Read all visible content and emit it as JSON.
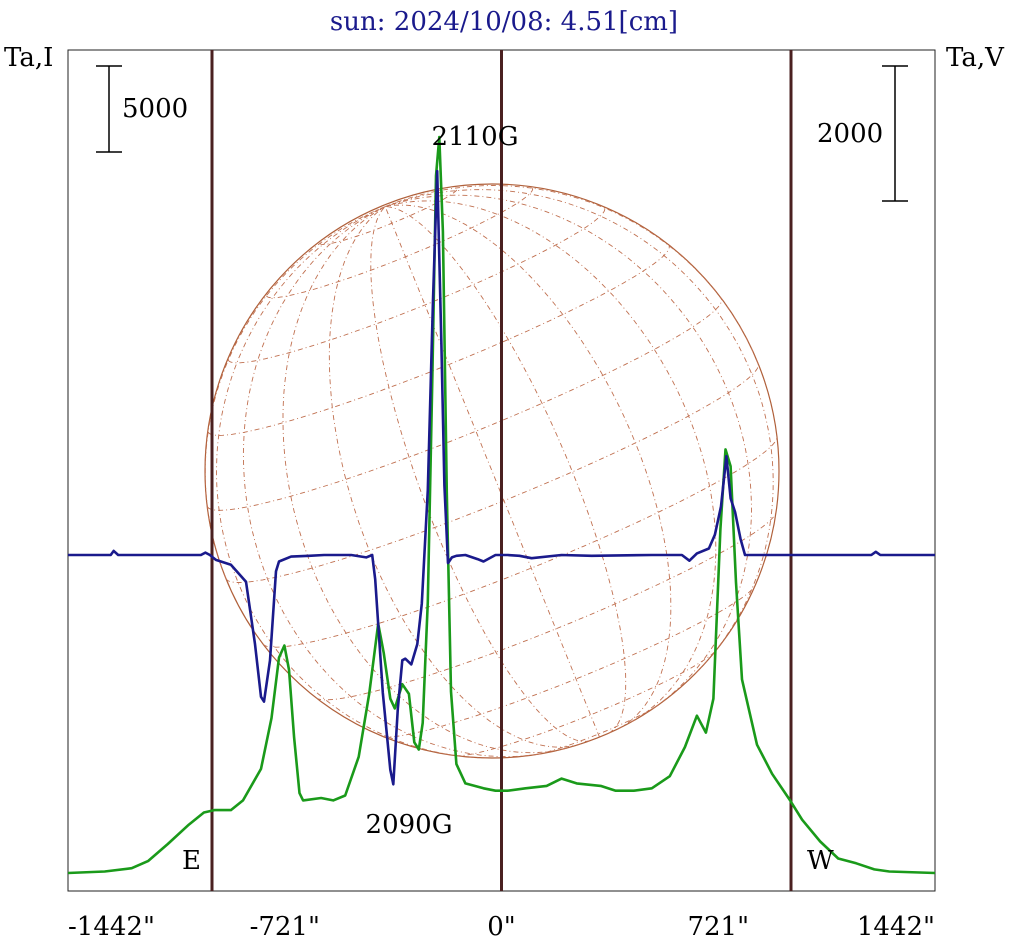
{
  "chart_data": {
    "type": "line",
    "title": "sun: 2024/10/08: 4.51[cm]",
    "left_axis_label": "Ta,I",
    "right_axis_label": "Ta,V",
    "x_ticks": [
      {
        "value": -1442,
        "label": "-1442\""
      },
      {
        "value": -721,
        "label": "-721\""
      },
      {
        "value": 0,
        "label": "0\""
      },
      {
        "value": 721,
        "label": "721\""
      },
      {
        "value": 1442,
        "label": "1442\""
      }
    ],
    "xlim": [
      -1442,
      1442
    ],
    "vertical_lines": [
      -963,
      0,
      963
    ],
    "limb_labels": {
      "east": "E",
      "west": "W"
    },
    "scale_bars": [
      {
        "axis": "I",
        "value": 5000,
        "label": "5000"
      },
      {
        "axis": "V",
        "value": 2000,
        "label": "2000"
      }
    ],
    "annotations": [
      {
        "text": "2110G",
        "x": -100
      },
      {
        "text": "2090G",
        "x": -310
      }
    ],
    "ylim_I": [
      0,
      34000
    ],
    "ylim_V": [
      -4000,
      5800
    ],
    "series": [
      {
        "stokes": "I",
        "color": "#1a9a1a",
        "points": [
          [
            -1442,
            0
          ],
          [
            -1320,
            60
          ],
          [
            -1230,
            200
          ],
          [
            -1175,
            500
          ],
          [
            -1110,
            1200
          ],
          [
            -1040,
            2000
          ],
          [
            -990,
            2500
          ],
          [
            -955,
            2600
          ],
          [
            -900,
            2600
          ],
          [
            -860,
            3000
          ],
          [
            -800,
            4300
          ],
          [
            -765,
            6400
          ],
          [
            -740,
            8900
          ],
          [
            -722,
            9400
          ],
          [
            -707,
            8400
          ],
          [
            -690,
            5600
          ],
          [
            -672,
            3300
          ],
          [
            -660,
            3000
          ],
          [
            -600,
            3100
          ],
          [
            -560,
            3000
          ],
          [
            -520,
            3200
          ],
          [
            -475,
            4800
          ],
          [
            -440,
            7400
          ],
          [
            -410,
            10300
          ],
          [
            -392,
            9100
          ],
          [
            -370,
            7200
          ],
          [
            -355,
            6800
          ],
          [
            -330,
            7800
          ],
          [
            -308,
            7400
          ],
          [
            -290,
            5400
          ],
          [
            -275,
            5100
          ],
          [
            -262,
            6200
          ],
          [
            -245,
            11200
          ],
          [
            -230,
            20600
          ],
          [
            -218,
            28800
          ],
          [
            -207,
            30400
          ],
          [
            -195,
            26500
          ],
          [
            -182,
            15700
          ],
          [
            -168,
            7500
          ],
          [
            -150,
            4500
          ],
          [
            -120,
            3700
          ],
          [
            -60,
            3500
          ],
          [
            -20,
            3400
          ],
          [
            20,
            3400
          ],
          [
            80,
            3500
          ],
          [
            150,
            3600
          ],
          [
            200,
            3900
          ],
          [
            250,
            3700
          ],
          [
            330,
            3600
          ],
          [
            380,
            3400
          ],
          [
            440,
            3400
          ],
          [
            500,
            3500
          ],
          [
            560,
            4000
          ],
          [
            610,
            5200
          ],
          [
            650,
            6500
          ],
          [
            680,
            5800
          ],
          [
            705,
            7200
          ],
          [
            728,
            14200
          ],
          [
            745,
            17500
          ],
          [
            762,
            16800
          ],
          [
            780,
            12000
          ],
          [
            800,
            8000
          ],
          [
            850,
            5300
          ],
          [
            900,
            4100
          ],
          [
            960,
            3000
          ],
          [
            1000,
            2200
          ],
          [
            1060,
            1300
          ],
          [
            1120,
            600
          ],
          [
            1180,
            400
          ],
          [
            1240,
            150
          ],
          [
            1290,
            60
          ],
          [
            1442,
            0
          ]
        ]
      },
      {
        "stokes": "V",
        "color": "#1a1a8c",
        "points": [
          [
            -1442,
            0
          ],
          [
            -1300,
            0
          ],
          [
            -1290,
            50
          ],
          [
            -1275,
            0
          ],
          [
            -1100,
            0
          ],
          [
            -1000,
            0
          ],
          [
            -985,
            30
          ],
          [
            -970,
            0
          ],
          [
            -950,
            -60
          ],
          [
            -900,
            -120
          ],
          [
            -850,
            -330
          ],
          [
            -820,
            -1100
          ],
          [
            -800,
            -1750
          ],
          [
            -790,
            -1810
          ],
          [
            -770,
            -1300
          ],
          [
            -750,
            -200
          ],
          [
            -740,
            -80
          ],
          [
            -700,
            -20
          ],
          [
            -640,
            -10
          ],
          [
            -590,
            0
          ],
          [
            -500,
            0
          ],
          [
            -450,
            -30
          ],
          [
            -430,
            0
          ],
          [
            -420,
            -300
          ],
          [
            -395,
            -1700
          ],
          [
            -370,
            -2650
          ],
          [
            -360,
            -2830
          ],
          [
            -345,
            -1900
          ],
          [
            -330,
            -1300
          ],
          [
            -320,
            -1280
          ],
          [
            -300,
            -1350
          ],
          [
            -280,
            -1100
          ],
          [
            -265,
            -600
          ],
          [
            -245,
            800
          ],
          [
            -228,
            3150
          ],
          [
            -214,
            4740
          ],
          [
            -200,
            2600
          ],
          [
            -190,
            860
          ],
          [
            -178,
            -100
          ],
          [
            -165,
            -30
          ],
          [
            -150,
            -10
          ],
          [
            -120,
            0
          ],
          [
            -80,
            -50
          ],
          [
            -60,
            -80
          ],
          [
            -20,
            0
          ],
          [
            20,
            0
          ],
          [
            60,
            -10
          ],
          [
            100,
            -40
          ],
          [
            200,
            0
          ],
          [
            300,
            -10
          ],
          [
            500,
            0
          ],
          [
            600,
            0
          ],
          [
            625,
            -70
          ],
          [
            650,
            20
          ],
          [
            690,
            80
          ],
          [
            710,
            250
          ],
          [
            730,
            600
          ],
          [
            748,
            1220
          ],
          [
            762,
            700
          ],
          [
            777,
            530
          ],
          [
            795,
            200
          ],
          [
            810,
            0
          ],
          [
            830,
            0
          ],
          [
            1000,
            0
          ],
          [
            1230,
            0
          ],
          [
            1245,
            40
          ],
          [
            1260,
            0
          ],
          [
            1442,
            0
          ]
        ]
      }
    ]
  }
}
